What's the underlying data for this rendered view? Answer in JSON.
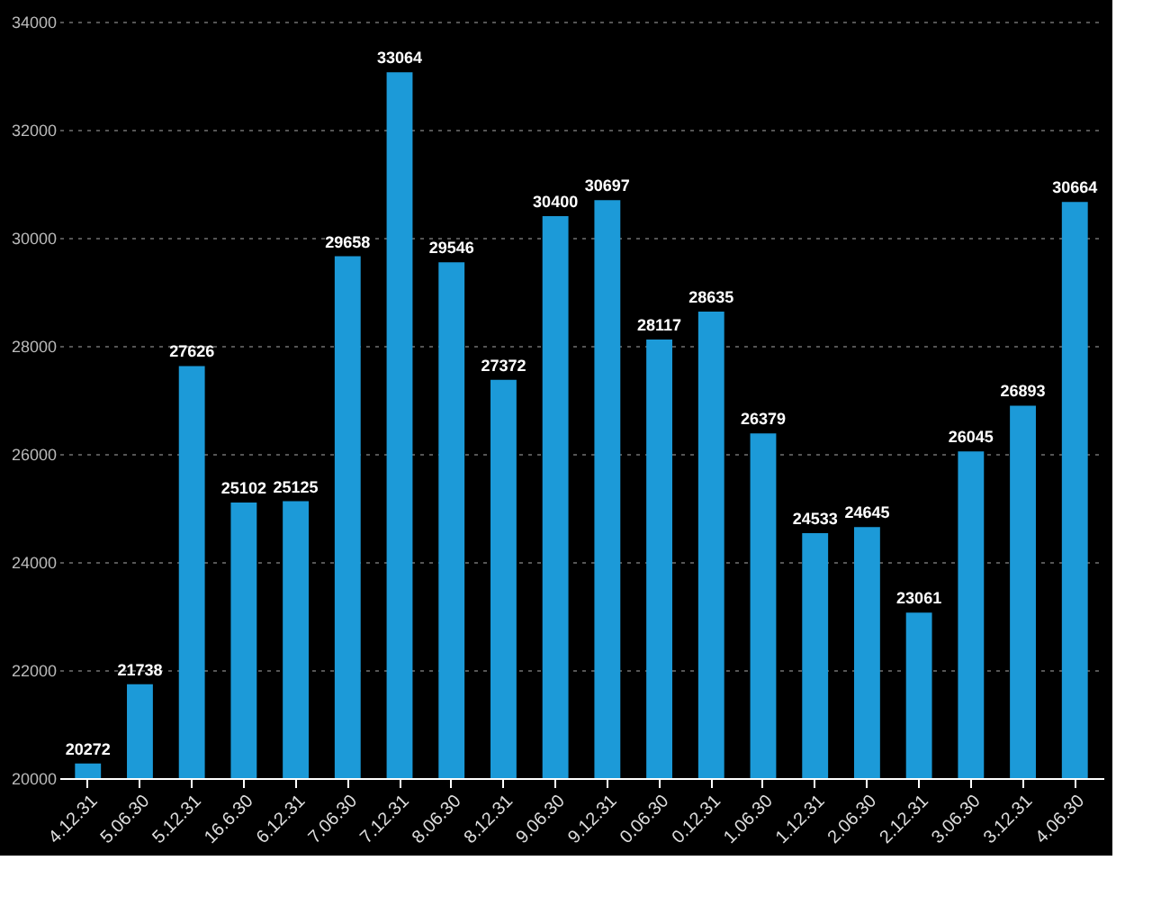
{
  "chart_data": {
    "type": "bar",
    "categories": [
      "4.12.31",
      "5.06.30",
      "5.12.31",
      "16.6.30",
      "6.12.31",
      "7.06.30",
      "7.12.31",
      "8.06.30",
      "8.12.31",
      "9.06.30",
      "9.12.31",
      "0.06.30",
      "0.12.31",
      "1.06.30",
      "1.12.31",
      "2.06.30",
      "2.12.31",
      "3.06.30",
      "3.12.31",
      "4.06.30"
    ],
    "values": [
      20272,
      21738,
      27626,
      25102,
      25125,
      29658,
      33064,
      29546,
      27372,
      30400,
      30697,
      28117,
      28635,
      26379,
      24533,
      24645,
      23061,
      26045,
      26893,
      30664
    ],
    "color": "#1c9ad8",
    "ylim": [
      20000,
      34000
    ],
    "yticks": [
      20000,
      22000,
      24000,
      26000,
      28000,
      30000,
      32000,
      34000
    ],
    "grid": "y",
    "data_labels": true
  }
}
